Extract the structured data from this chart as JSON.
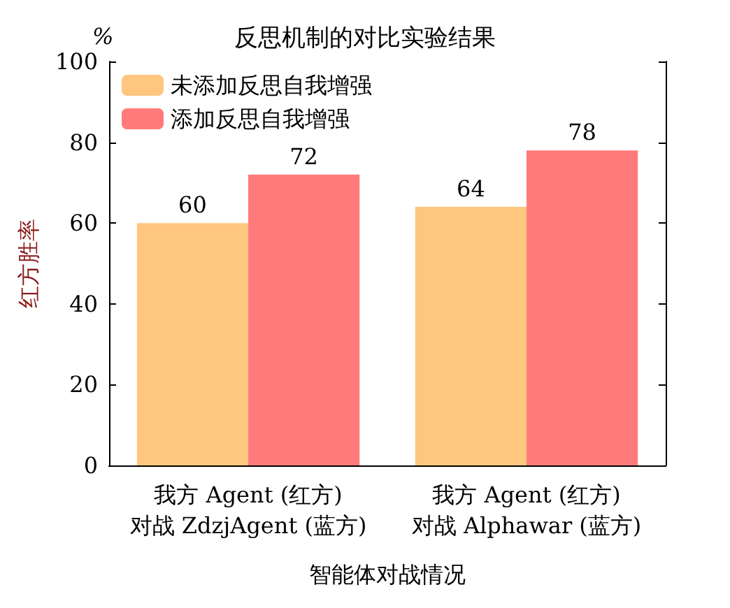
{
  "chart_data": {
    "type": "bar",
    "title": "反思机制的对比实验结果",
    "xlabel": "智能体对战情况",
    "ylabel": "红方胜率",
    "annotations": [
      "%"
    ],
    "categories": [
      "我方 Agent (红方)\n对战 ZdzjAgent (蓝方)",
      "我方 Agent (红方)\n对战 Alphawar (蓝方)"
    ],
    "series": [
      {
        "name": "未添加反思自我增强",
        "color": "#ffc67f",
        "values": [
          60,
          64
        ]
      },
      {
        "name": "添加反思自我增强",
        "color": "#ff7b7b",
        "values": [
          72,
          78
        ]
      }
    ],
    "ylim": [
      0,
      100
    ],
    "yticks": [
      0,
      20,
      40,
      60,
      80,
      100
    ],
    "legend": "top left",
    "data_labels": true
  }
}
